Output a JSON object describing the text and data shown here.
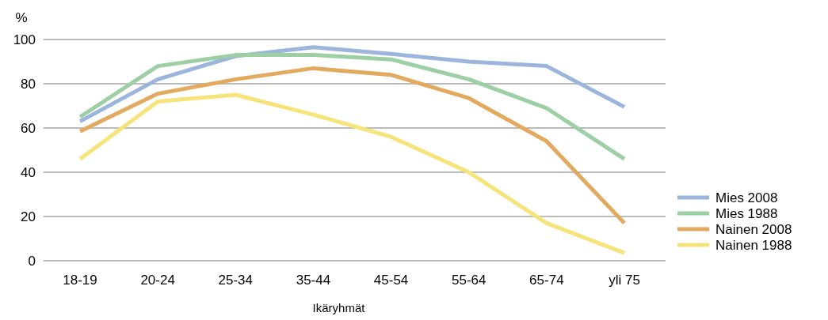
{
  "chart_data": {
    "type": "line",
    "ylabel": "%",
    "xlabel": "Ikäryhmät",
    "categories": [
      "18-19",
      "20-24",
      "25-34",
      "35-44",
      "45-54",
      "55-64",
      "65-74",
      "yli 75"
    ],
    "series": [
      {
        "name": "Mies 2008",
        "color": "#9bb5dc",
        "values": [
          63,
          82,
          92.5,
          96.5,
          93.5,
          90,
          88,
          69.5
        ]
      },
      {
        "name": "Mies 1988",
        "color": "#9ccfa4",
        "values": [
          65,
          88,
          93,
          93,
          91,
          82,
          69,
          46
        ]
      },
      {
        "name": "Nainen 2008",
        "color": "#e2a95f",
        "values": [
          58.5,
          75.5,
          82,
          87,
          84,
          73.5,
          54,
          17
        ]
      },
      {
        "name": "Nainen 1988",
        "color": "#f6e37a",
        "values": [
          46,
          72,
          75,
          66,
          56,
          40,
          17,
          3.5
        ]
      }
    ],
    "ylim": [
      0,
      100
    ],
    "yticks": [
      0,
      20,
      40,
      60,
      80,
      100
    ],
    "grid": "y",
    "legend": "right",
    "marker": "none",
    "line_style": "solid"
  }
}
